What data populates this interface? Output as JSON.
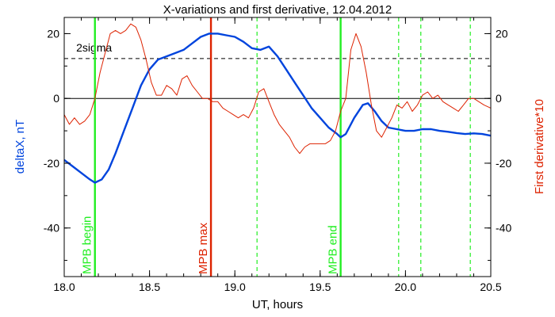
{
  "chart_data": {
    "type": "line",
    "title": "X-variations and first derivative, 12.04.2012",
    "xlabel": "UT, hours",
    "ylabel": "deltaX, nT",
    "y2label": "First derivative*10",
    "xlim": [
      18.0,
      20.5
    ],
    "ylim": [
      -55,
      25
    ],
    "y2lim": [
      -55,
      25
    ],
    "xticks": [
      18.0,
      18.5,
      19.0,
      19.5,
      20.0,
      20.5
    ],
    "xtick_labels": [
      "18.0",
      "18.5",
      "19.0",
      "19.5",
      "20.0",
      "20.5"
    ],
    "yticks": [
      20,
      0,
      -20,
      -40
    ],
    "ytick_labels": [
      "20",
      "0",
      "-20",
      "-40"
    ],
    "y2ticks": [
      20,
      0,
      -20,
      -40
    ],
    "y2tick_labels": [
      "20",
      "0",
      "-20",
      "-40"
    ],
    "colors": {
      "deltaX": "#0044dd",
      "derivative": "#dd2200",
      "markers": "#22ee22",
      "mpb_max": "#dd2200",
      "axes": "#000000"
    },
    "reference_lines": [
      {
        "y": 0,
        "style": "solid",
        "color": "#000000"
      },
      {
        "y": 12.3,
        "style": "dashed",
        "color": "#000000",
        "label": "2sigma"
      }
    ],
    "vertical_markers": [
      {
        "x": 18.18,
        "color": "#22ee22",
        "style": "solid",
        "label": "MPB begin"
      },
      {
        "x": 18.86,
        "color": "#dd2200",
        "style": "solid",
        "label": "MPB max"
      },
      {
        "x": 19.62,
        "color": "#22ee22",
        "style": "solid",
        "label": "MPB end"
      },
      {
        "x": 19.13,
        "color": "#22ee22",
        "style": "dashed",
        "label": ""
      },
      {
        "x": 19.96,
        "color": "#22ee22",
        "style": "dashed",
        "label": ""
      },
      {
        "x": 20.09,
        "color": "#22ee22",
        "style": "dashed",
        "label": ""
      },
      {
        "x": 20.38,
        "color": "#22ee22",
        "style": "dashed",
        "label": ""
      }
    ],
    "series": [
      {
        "axis": "left",
        "color": "#0044dd",
        "x": [
          18.0,
          18.05,
          18.1,
          18.15,
          18.18,
          18.22,
          18.26,
          18.3,
          18.35,
          18.4,
          18.45,
          18.5,
          18.55,
          18.6,
          18.65,
          18.7,
          18.75,
          18.8,
          18.85,
          18.9,
          18.95,
          19.0,
          19.05,
          19.1,
          19.15,
          19.2,
          19.25,
          19.3,
          19.35,
          19.4,
          19.45,
          19.5,
          19.55,
          19.6,
          19.62,
          19.65,
          19.7,
          19.75,
          19.78,
          19.82,
          19.86,
          19.9,
          19.95,
          20.0,
          20.05,
          20.1,
          20.15,
          20.2,
          20.25,
          20.3,
          20.35,
          20.4,
          20.45,
          20.5
        ],
        "values": [
          -19,
          -21,
          -23,
          -25,
          -26,
          -25,
          -22,
          -17,
          -10,
          -3,
          4,
          9,
          12,
          13,
          14,
          15,
          17,
          19,
          20,
          20,
          19.5,
          19,
          17.5,
          15.5,
          15,
          16,
          13,
          9,
          5,
          1,
          -3,
          -6,
          -9,
          -11,
          -12,
          -11,
          -6,
          -2,
          -1.5,
          -4,
          -7,
          -9,
          -9.5,
          -10,
          -10,
          -9.5,
          -9.5,
          -10,
          -10.3,
          -10.7,
          -11,
          -10.8,
          -11,
          -11.5
        ]
      },
      {
        "axis": "right",
        "color": "#dd2200",
        "x": [
          18.0,
          18.03,
          18.06,
          18.09,
          18.12,
          18.15,
          18.18,
          18.21,
          18.24,
          18.27,
          18.3,
          18.33,
          18.36,
          18.39,
          18.42,
          18.45,
          18.48,
          18.51,
          18.54,
          18.57,
          18.6,
          18.63,
          18.66,
          18.69,
          18.72,
          18.75,
          18.78,
          18.81,
          18.84,
          18.87,
          18.9,
          18.93,
          18.96,
          18.99,
          19.02,
          19.05,
          19.08,
          19.11,
          19.14,
          19.17,
          19.2,
          19.23,
          19.26,
          19.29,
          19.32,
          19.35,
          19.38,
          19.41,
          19.44,
          19.47,
          19.5,
          19.53,
          19.56,
          19.59,
          19.62,
          19.65,
          19.68,
          19.71,
          19.74,
          19.77,
          19.8,
          19.83,
          19.86,
          19.89,
          19.92,
          19.95,
          19.98,
          20.01,
          20.04,
          20.07,
          20.1,
          20.13,
          20.16,
          20.19,
          20.22,
          20.25,
          20.28,
          20.31,
          20.34,
          20.37,
          20.4,
          20.43,
          20.46,
          20.5
        ],
        "values": [
          -5,
          -8,
          -6,
          -8,
          -7,
          -5,
          0,
          8,
          14,
          20,
          21,
          20,
          21,
          23,
          22,
          18,
          12,
          5,
          1,
          1,
          4,
          3,
          1,
          6,
          7,
          4,
          2,
          0,
          0,
          -1,
          -1,
          -3,
          -4,
          -5,
          -6,
          -5,
          -6,
          -3,
          2,
          3,
          -1,
          -5,
          -8,
          -10,
          -12,
          -15,
          -17,
          -15,
          -14,
          -14,
          -14,
          -14,
          -13,
          -10,
          -4,
          0,
          15,
          20,
          16,
          8,
          -2,
          -10,
          -12,
          -9,
          -6,
          -2,
          -3,
          -1,
          -4,
          -2,
          1,
          2,
          0,
          1,
          -1,
          -2,
          -3,
          -4,
          -2,
          0,
          0,
          -1,
          -2,
          -3
        ]
      }
    ]
  }
}
